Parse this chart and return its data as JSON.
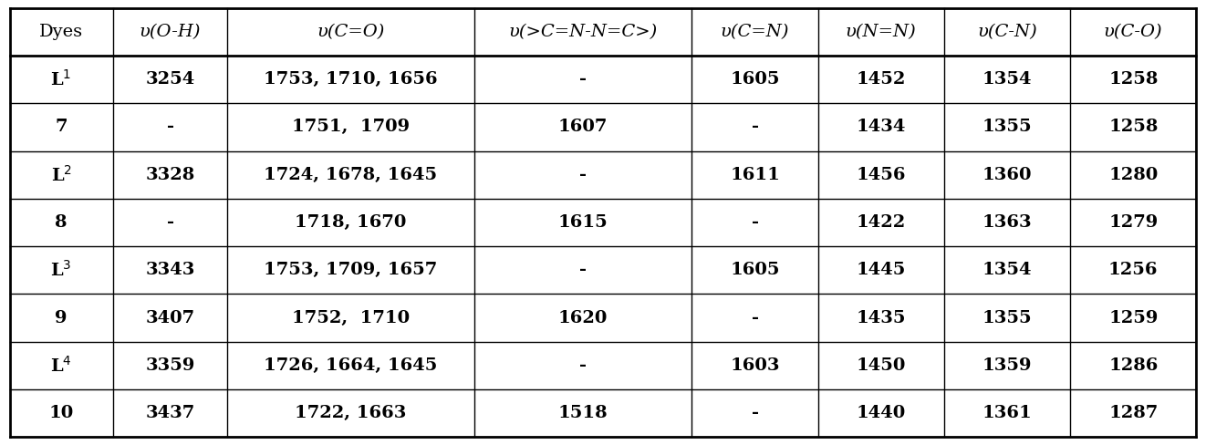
{
  "headers": [
    "Dyes",
    "υ(O-H)",
    "υ(C=O)",
    "υ(>C=N-N=C>)",
    "υ(C=N)",
    "υ(N=N)",
    "υ(C-N)",
    "υ(C-O)"
  ],
  "rows": [
    [
      "L$^1$",
      "3254",
      "1753, 1710, 1656",
      "-",
      "1605",
      "1452",
      "1354",
      "1258"
    ],
    [
      "7",
      "-",
      "1751,  1709",
      "1607",
      "-",
      "1434",
      "1355",
      "1258"
    ],
    [
      "L$^2$",
      "3328",
      "1724, 1678, 1645",
      "-",
      "1611",
      "1456",
      "1360",
      "1280"
    ],
    [
      "8",
      "-",
      "1718, 1670",
      "1615",
      "-",
      "1422",
      "1363",
      "1279"
    ],
    [
      "L$^3$",
      "3343",
      "1753, 1709, 1657",
      "-",
      "1605",
      "1445",
      "1354",
      "1256"
    ],
    [
      "9",
      "3407",
      "1752,  1710",
      "1620",
      "-",
      "1435",
      "1355",
      "1259"
    ],
    [
      "L$^4$",
      "3359",
      "1726, 1664, 1645",
      "-",
      "1603",
      "1450",
      "1359",
      "1286"
    ],
    [
      "10",
      "3437",
      "1722, 1663",
      "1518",
      "-",
      "1440",
      "1361",
      "1287"
    ]
  ],
  "col_widths_raw": [
    90,
    100,
    215,
    190,
    110,
    110,
    110,
    110
  ],
  "background_color": "#ffffff",
  "text_color": "#000000",
  "border_color": "#000000",
  "header_fontsize": 14,
  "cell_fontsize": 14,
  "figsize": [
    13.22,
    4.88
  ],
  "dpi": 100
}
